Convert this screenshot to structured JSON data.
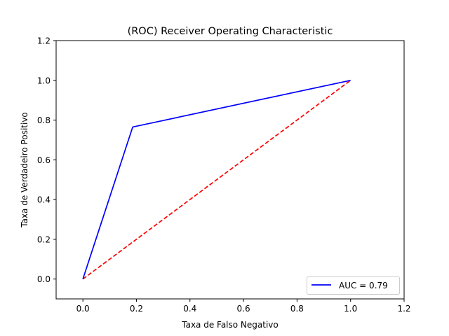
{
  "chart_data": {
    "type": "line",
    "title": "(ROC) Receiver Operating Characteristic",
    "xlabel": "Taxa de Falso Negativo",
    "ylabel": "Taxa de Verdadeiro Positivo",
    "xlim": [
      -0.1,
      1.2
    ],
    "ylim": [
      -0.1,
      1.2
    ],
    "xticks": [
      0.0,
      0.2,
      0.4,
      0.6,
      0.8,
      1.0,
      1.2
    ],
    "yticks": [
      0.0,
      0.2,
      0.4,
      0.6,
      0.8,
      1.0,
      1.2
    ],
    "xtick_labels": [
      "0.0",
      "0.2",
      "0.4",
      "0.6",
      "0.8",
      "1.0",
      "1.2"
    ],
    "ytick_labels": [
      "0.0",
      "0.2",
      "0.4",
      "0.6",
      "0.8",
      "1.0",
      "1.2"
    ],
    "grid": false,
    "legend_position": "lower right",
    "series": [
      {
        "name": "AUC = 0.79",
        "color": "#0000ff",
        "line_style": "solid",
        "x": [
          0.0,
          0.186,
          1.0
        ],
        "y": [
          0.0,
          0.765,
          1.0
        ]
      },
      {
        "color": "#ff0000",
        "line_style": "dashed",
        "x": [
          0.0,
          1.0
        ],
        "y": [
          0.0,
          1.0
        ]
      }
    ]
  }
}
